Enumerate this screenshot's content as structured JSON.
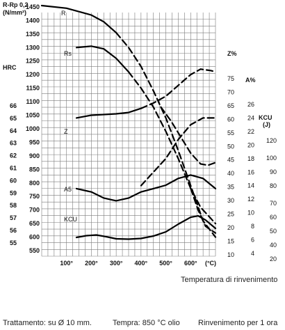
{
  "chart_data": {
    "type": "line",
    "title": "",
    "xlabel": "Temperatura di rinvenimento",
    "x_unit": "(°C)",
    "x_ticks": [
      "100°",
      "200°",
      "300°",
      "400°",
      "500°",
      "600°"
    ],
    "xlim": [
      0,
      700
    ],
    "grid": true,
    "axes": {
      "stress": {
        "label": "R-Rp 0,2",
        "unit": "(N/mm²)",
        "ticks": [
          1450,
          1400,
          1350,
          1300,
          1250,
          1200,
          1150,
          1100,
          1050,
          1000,
          950,
          900,
          850,
          800,
          750,
          700,
          650,
          600,
          550
        ],
        "ylim": [
          500,
          1475
        ]
      },
      "hrc": {
        "label": "HRC",
        "ticks": [
          66,
          65,
          64,
          63,
          62,
          61,
          60,
          59,
          58,
          57,
          56,
          55
        ]
      },
      "z": {
        "label": "Z%",
        "ticks": [
          75,
          70,
          65,
          60,
          55,
          50,
          45,
          40,
          35,
          30,
          25,
          20,
          15,
          10
        ]
      },
      "a": {
        "label": "A%",
        "ticks": [
          26,
          24,
          22,
          20,
          18,
          16,
          14,
          12,
          10,
          8,
          6,
          4
        ]
      },
      "kcu": {
        "label": "KCU",
        "unit": "(J)",
        "ticks": [
          120,
          100,
          90,
          80,
          70,
          60,
          50,
          40,
          20
        ]
      }
    },
    "series": [
      {
        "name": "R",
        "axis": "stress",
        "solid": [
          [
            0,
            1455
          ],
          [
            100,
            1445
          ],
          [
            200,
            1420
          ],
          [
            250,
            1395
          ],
          [
            300,
            1355
          ]
        ],
        "dashed": [
          [
            300,
            1355
          ],
          [
            350,
            1300
          ],
          [
            400,
            1230
          ],
          [
            450,
            1140
          ],
          [
            500,
            1040
          ],
          [
            550,
            920
          ],
          [
            600,
            790
          ],
          [
            650,
            660
          ],
          [
            700,
            600
          ]
        ]
      },
      {
        "name": "Rs",
        "axis": "stress",
        "solid": [
          [
            140,
            1300
          ],
          [
            200,
            1305
          ],
          [
            250,
            1295
          ],
          [
            300,
            1260
          ],
          [
            350,
            1210
          ]
        ],
        "dashed": [
          [
            350,
            1210
          ],
          [
            400,
            1150
          ],
          [
            450,
            1080
          ],
          [
            500,
            990
          ],
          [
            550,
            890
          ],
          [
            600,
            780
          ],
          [
            640,
            710
          ],
          [
            700,
            650
          ]
        ]
      },
      {
        "name": "Z",
        "axis": "z",
        "solid": [
          [
            140,
            51
          ],
          [
            200,
            52
          ],
          [
            300,
            52.5
          ],
          [
            350,
            53
          ],
          [
            400,
            54.5
          ]
        ],
        "dashed": [
          [
            400,
            54.5
          ],
          [
            450,
            56.5
          ],
          [
            500,
            59
          ],
          [
            550,
            63
          ],
          [
            600,
            67
          ],
          [
            640,
            69
          ],
          [
            680,
            68.5
          ],
          [
            700,
            68
          ]
        ]
      },
      {
        "name": "",
        "axis": "z",
        "solid": [],
        "dashed": [
          [
            400,
            26
          ],
          [
            450,
            31
          ],
          [
            500,
            36
          ],
          [
            550,
            43
          ],
          [
            600,
            48.5
          ],
          [
            650,
            51
          ],
          [
            700,
            51
          ]
        ]
      },
      {
        "name": "",
        "axis": "z",
        "solid": [],
        "dashed": [
          [
            480,
            55
          ],
          [
            520,
            50
          ],
          [
            560,
            44
          ],
          [
            600,
            38
          ],
          [
            640,
            34
          ],
          [
            670,
            33.5
          ],
          [
            700,
            34.5
          ]
        ]
      },
      {
        "name": "A5",
        "axis": "a",
        "solid": [
          [
            140,
            11
          ],
          [
            200,
            10.5
          ],
          [
            250,
            9.6
          ],
          [
            300,
            9.2
          ],
          [
            350,
            9.6
          ],
          [
            400,
            10.5
          ],
          [
            450,
            11
          ],
          [
            500,
            11.5
          ],
          [
            550,
            12.5
          ],
          [
            600,
            13
          ],
          [
            650,
            12.5
          ],
          [
            700,
            11
          ]
        ],
        "dashed": []
      },
      {
        "name": "KCU",
        "axis": "kcu",
        "solid": [
          [
            140,
            29
          ],
          [
            180,
            31.5
          ],
          [
            220,
            32.5
          ],
          [
            260,
            30
          ],
          [
            300,
            27
          ],
          [
            350,
            26.5
          ],
          [
            400,
            27.5
          ],
          [
            450,
            31
          ],
          [
            500,
            37
          ],
          [
            550,
            44
          ],
          [
            600,
            49
          ],
          [
            630,
            50
          ],
          [
            660,
            47
          ],
          [
            700,
            41
          ]
        ],
        "dashed": []
      },
      {
        "name": "",
        "axis": "stress",
        "solid": [],
        "dashed": [
          [
            600,
            780
          ],
          [
            630,
            700
          ],
          [
            660,
            640
          ],
          [
            700,
            615
          ]
        ]
      }
    ]
  },
  "footer": {
    "x_axis_title": "Temperatura di rinvenimento",
    "treatment": "Trattamento: su Ø 10 mm.",
    "quench": "Tempra: 850 °C olio",
    "tempering": "Rinvenimento per 1 ora"
  }
}
